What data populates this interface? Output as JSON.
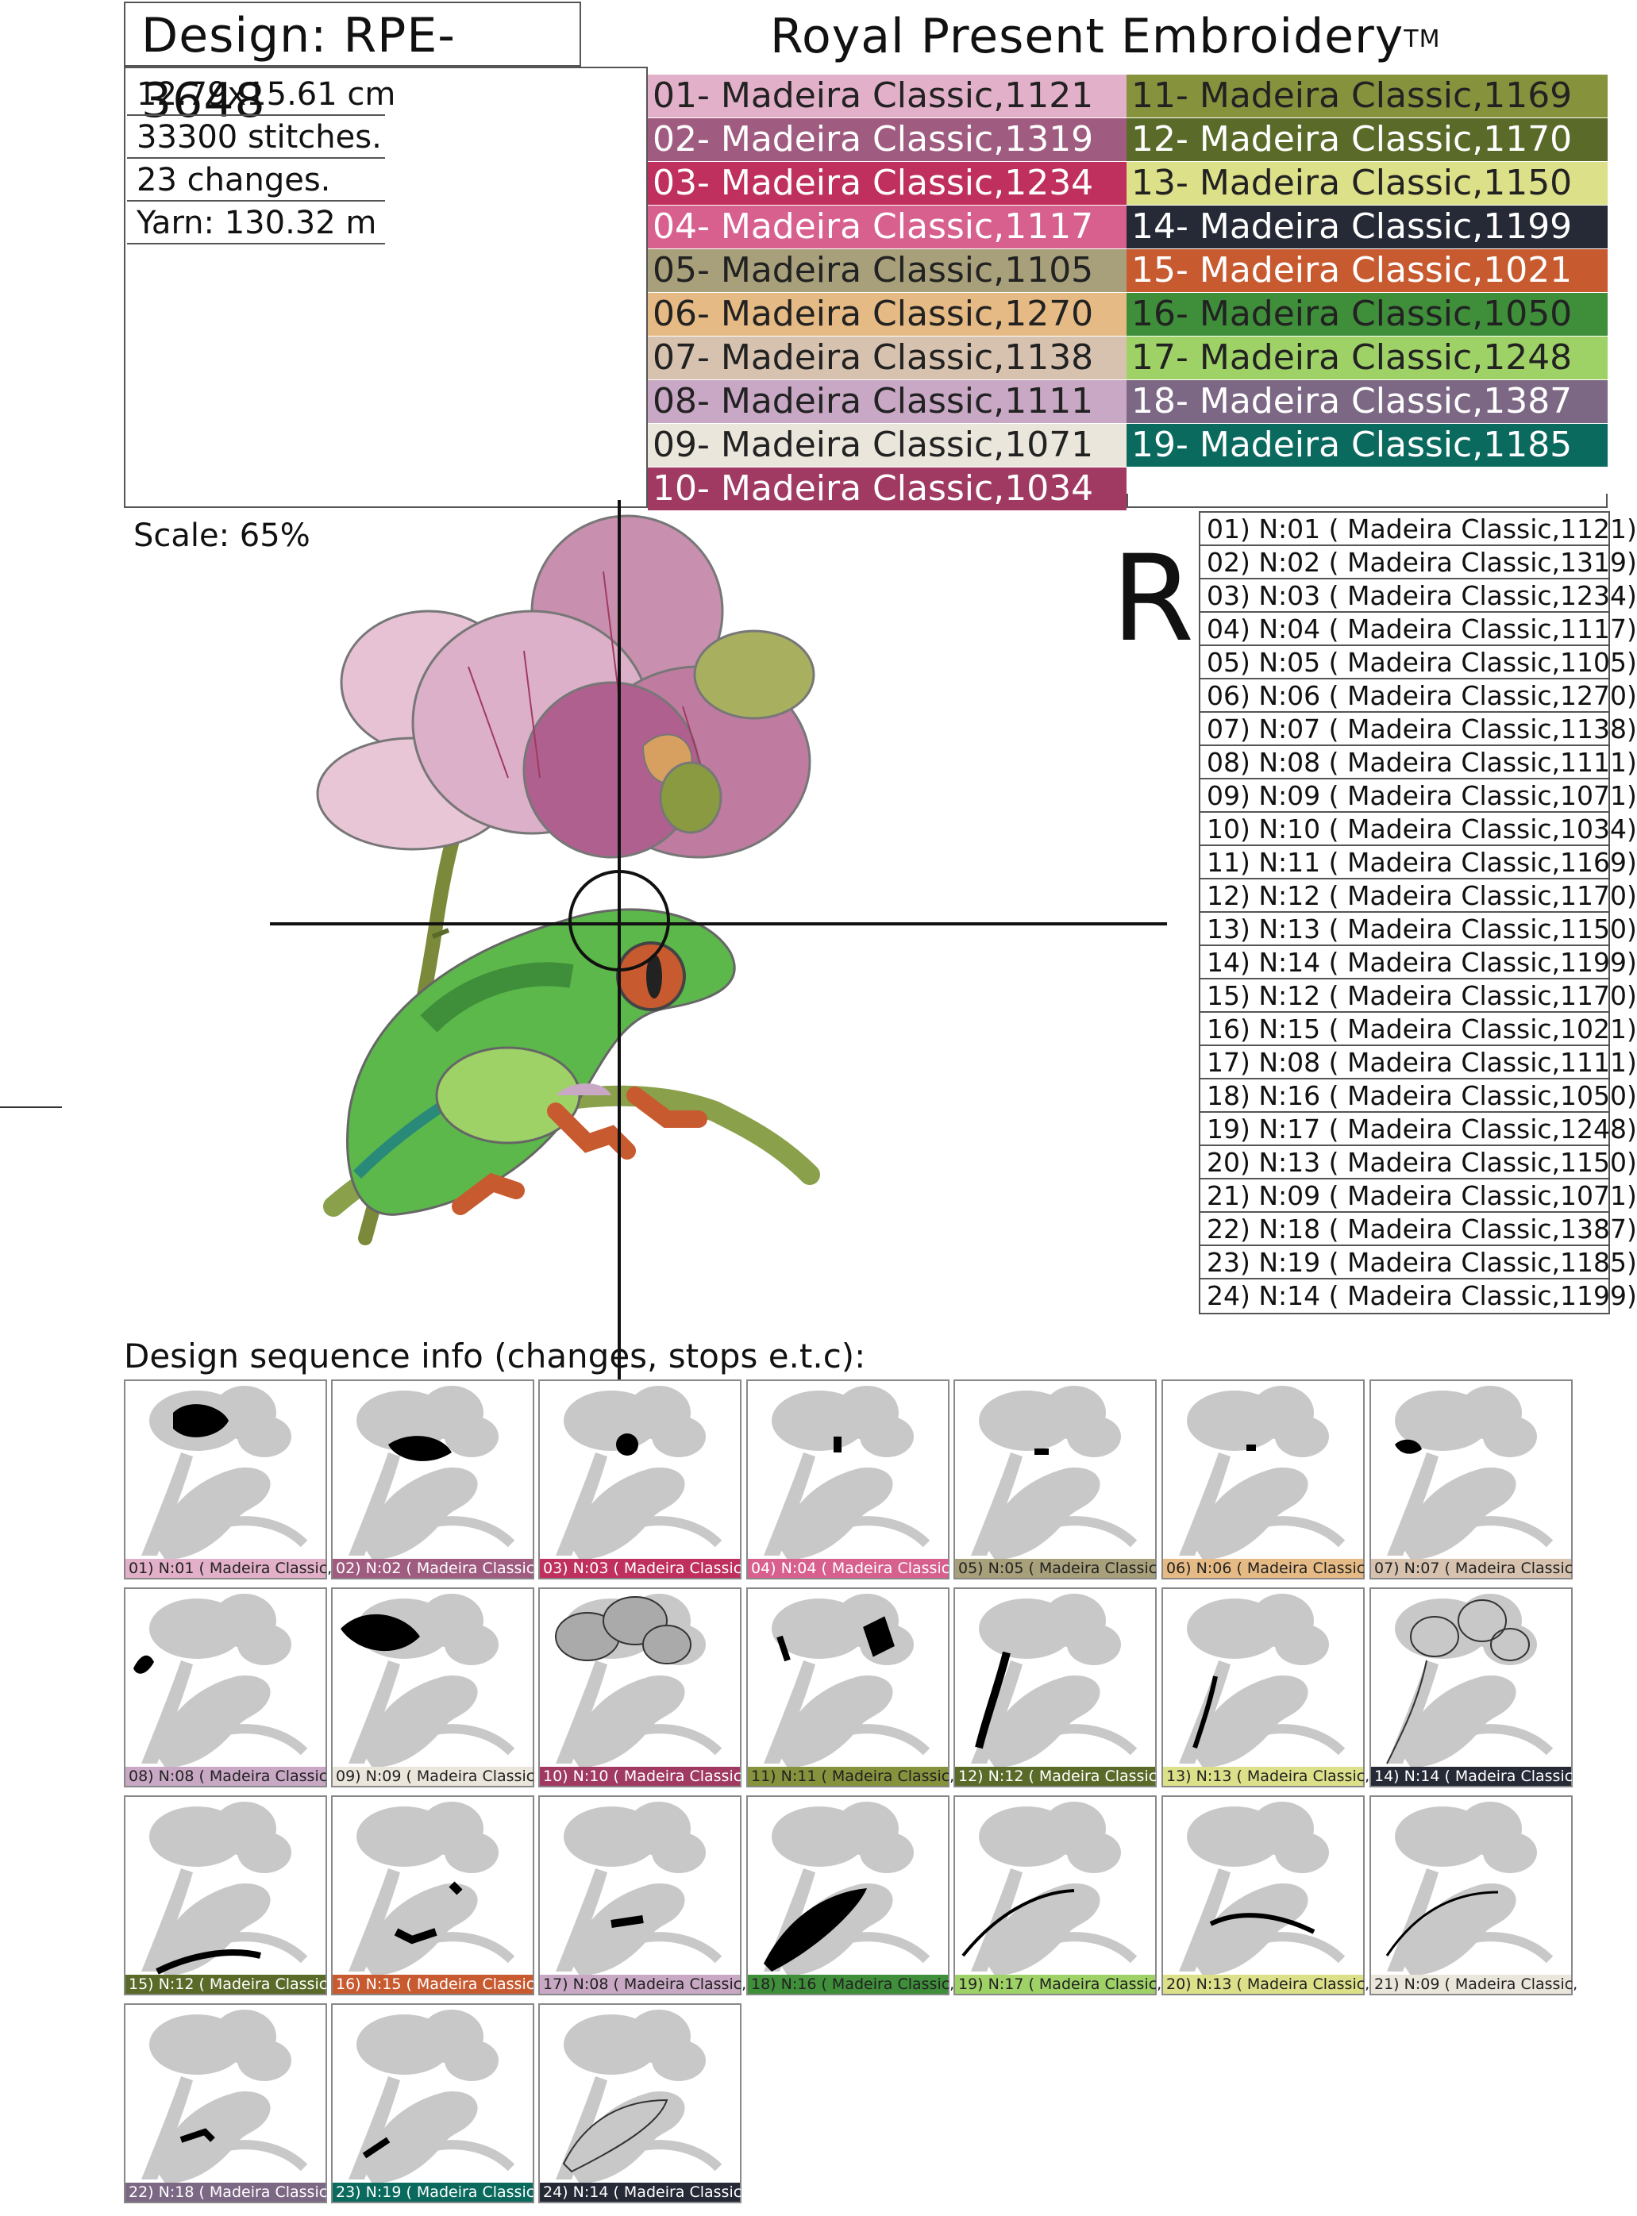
{
  "header": {
    "design_label": "Design: RPE-3648",
    "brand": "Royal Present Embroidery",
    "trademark": "TM"
  },
  "info": {
    "size": "12.79x15.61 cm",
    "stitches": "33300 stitches.",
    "changes": "23 changes.",
    "yarn": "Yarn: 130.32 m"
  },
  "legend": [
    {
      "label": "01- Madeira Classic,1121",
      "color": "#e2b0c8",
      "text": "#222222"
    },
    {
      "label": "02- Madeira Classic,1319",
      "color": "#a05c80",
      "text": "#ffffff"
    },
    {
      "label": "03- Madeira Classic,1234",
      "color": "#c0305e",
      "text": "#ffffff"
    },
    {
      "label": "04- Madeira Classic,1117",
      "color": "#d8608e",
      "text": "#ffffff"
    },
    {
      "label": "05- Madeira Classic,1105",
      "color": "#a8a07a",
      "text": "#222222"
    },
    {
      "label": "06- Madeira Classic,1270",
      "color": "#e6ba84",
      "text": "#222222"
    },
    {
      "label": "07- Madeira Classic,1138",
      "color": "#d6c2ae",
      "text": "#222222"
    },
    {
      "label": "08- Madeira Classic,1111",
      "color": "#c8a8c4",
      "text": "#222222"
    },
    {
      "label": "09- Madeira Classic,1071",
      "color": "#ebe6dc",
      "text": "#222222"
    },
    {
      "label": "10- Madeira Classic,1034",
      "color": "#a03a62",
      "text": "#ffffff"
    },
    {
      "label": "11- Madeira Classic,1169",
      "color": "#86923c",
      "text": "#222222"
    },
    {
      "label": "12- Madeira Classic,1170",
      "color": "#5a6a28",
      "text": "#ffffff"
    },
    {
      "label": "13- Madeira Classic,1150",
      "color": "#dce088",
      "text": "#222222"
    },
    {
      "label": "14- Madeira Classic,1199",
      "color": "#262a36",
      "text": "#ffffff"
    },
    {
      "label": "15- Madeira Classic,1021",
      "color": "#c85a30",
      "text": "#ffffff"
    },
    {
      "label": "16- Madeira Classic,1050",
      "color": "#3e8e3a",
      "text": "#222222"
    },
    {
      "label": "17- Madeira Classic,1248",
      "color": "#9ed266",
      "text": "#222222"
    },
    {
      "label": "18- Madeira Classic,1387",
      "color": "#7c6884",
      "text": "#ffffff"
    },
    {
      "label": "19- Madeira Classic,1185",
      "color": "#0a6a5e",
      "text": "#ffffff"
    }
  ],
  "scale": "Scale: 65%",
  "big_letter": "R",
  "sequence": [
    "01) N:01 ( Madeira Classic,1121)",
    "02) N:02 ( Madeira Classic,1319)",
    "03) N:03 ( Madeira Classic,1234)",
    "04) N:04 ( Madeira Classic,1117)",
    "05) N:05 ( Madeira Classic,1105)",
    "06) N:06 ( Madeira Classic,1270)",
    "07) N:07 ( Madeira Classic,1138)",
    "08) N:08 ( Madeira Classic,1111)",
    "09) N:09 ( Madeira Classic,1071)",
    "10) N:10 ( Madeira Classic,1034)",
    "11) N:11 ( Madeira Classic,1169)",
    "12) N:12 ( Madeira Classic,1170)",
    "13) N:13 ( Madeira Classic,1150)",
    "14) N:14 ( Madeira Classic,1199)",
    "15) N:12 ( Madeira Classic,1170)",
    "16) N:15 ( Madeira Classic,1021)",
    "17) N:08 ( Madeira Classic,1111)",
    "18) N:16 ( Madeira Classic,1050)",
    "19) N:17 ( Madeira Classic,1248)",
    "20) N:13 ( Madeira Classic,1150)",
    "21) N:09 ( Madeira Classic,1071)",
    "22) N:18 ( Madeira Classic,1387)",
    "23) N:19 ( Madeira Classic,1185)",
    "24) N:14 ( Madeira Classic,1199)"
  ],
  "sequence_title": "Design sequence info (changes, stops e.t.c):",
  "thumbs": [
    {
      "label": "01) N:01 ( Madeira Classic,1",
      "color": "#e2b0c8",
      "text": "#222222"
    },
    {
      "label": "02) N:02 ( Madeira Classic",
      "color": "#a05c80",
      "text": "#ffffff"
    },
    {
      "label": "03) N:03 ( Madeira Classic",
      "color": "#c0305e",
      "text": "#ffffff"
    },
    {
      "label": "04) N:04 ( Madeira Classic",
      "color": "#d8608e",
      "text": "#ffffff"
    },
    {
      "label": "05) N:05 ( Madeira Classic",
      "color": "#a8a07a",
      "text": "#222222"
    },
    {
      "label": "06) N:06 ( Madeira Classic",
      "color": "#e6ba84",
      "text": "#222222"
    },
    {
      "label": "07) N:07 ( Madeira Classic",
      "color": "#d6c2ae",
      "text": "#222222"
    },
    {
      "label": "08) N:08 ( Madeira Classic",
      "color": "#c8a8c4",
      "text": "#222222"
    },
    {
      "label": "09) N:09 ( Madeira Classic",
      "color": "#ebe6dc",
      "text": "#222222"
    },
    {
      "label": "10) N:10 ( Madeira Classic,",
      "color": "#a03a62",
      "text": "#ffffff"
    },
    {
      "label": "11) N:11 ( Madeira Classic,11",
      "color": "#86923c",
      "text": "#222222"
    },
    {
      "label": "12) N:12 ( Madeira Classic,1",
      "color": "#5a6a28",
      "text": "#ffffff"
    },
    {
      "label": "13) N:13 ( Madeira Classic,1",
      "color": "#dce088",
      "text": "#222222"
    },
    {
      "label": "14) N:14 ( Madeira Classic,1",
      "color": "#262a36",
      "text": "#ffffff"
    },
    {
      "label": "15) N:12 ( Madeira Classic,1",
      "color": "#5a6a28",
      "text": "#ffffff"
    },
    {
      "label": "16) N:15 ( Madeira Classic,1",
      "color": "#c85a30",
      "text": "#ffffff"
    },
    {
      "label": "17) N:08 ( Madeira Classic,",
      "color": "#c8a8c4",
      "text": "#222222"
    },
    {
      "label": "18) N:16 ( Madeira Classic,1",
      "color": "#3e8e3a",
      "text": "#222222"
    },
    {
      "label": "19) N:17 ( Madeira Classic,1",
      "color": "#9ed266",
      "text": "#222222"
    },
    {
      "label": "20) N:13 ( Madeira Classic,",
      "color": "#dce088",
      "text": "#222222"
    },
    {
      "label": "21) N:09 ( Madeira Classic,",
      "color": "#ebe6dc",
      "text": "#222222"
    },
    {
      "label": "22) N:18 ( Madeira Classic,",
      "color": "#7c6884",
      "text": "#ffffff"
    },
    {
      "label": "23) N:19 ( Madeira Classic,",
      "color": "#0a6a5e",
      "text": "#ffffff"
    },
    {
      "label": "24) N:14 ( Madeira Classic,",
      "color": "#262a36",
      "text": "#ffffff"
    }
  ]
}
